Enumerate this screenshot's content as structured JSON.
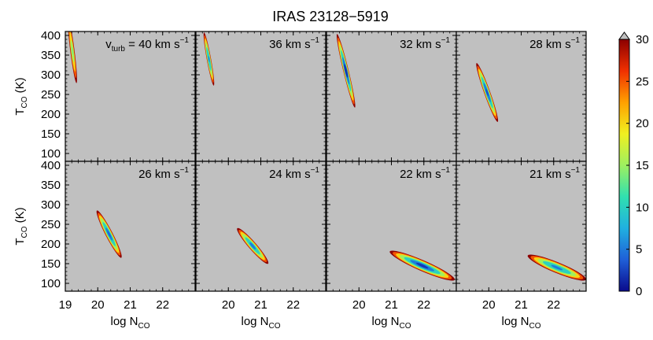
{
  "chart_data": {
    "type": "heatmap",
    "title": "IRAS 23128−5919",
    "ylabel_main": "T",
    "ylabel_sub": "CO",
    "ylabel_unit": " (K)",
    "xlabel_main": "log N",
    "xlabel_sub": "CO",
    "ylim": [
      80,
      410
    ],
    "xlim": [
      19,
      23
    ],
    "yticks": [
      "100",
      "150",
      "200",
      "250",
      "300",
      "350",
      "400"
    ],
    "xticks_first_panel": [
      "19",
      "20",
      "21",
      "22"
    ],
    "xticks_other_panels": [
      "",
      "20",
      "21",
      "22"
    ],
    "colorbar": {
      "ticks": [
        "0",
        "5",
        "10",
        "15",
        "20",
        "25",
        "30"
      ],
      "range": [
        0,
        30
      ],
      "extend": "max",
      "colors": [
        "#0a0a8c",
        "#1f5fd8",
        "#20b0e0",
        "#30e0b0",
        "#9ef060",
        "#f0f020",
        "#ffa000",
        "#f03000",
        "#8c0000"
      ]
    },
    "panel_background": "#c0c0c0",
    "panels": [
      {
        "label_prefix": "v",
        "label_sub": "turb",
        "label_value": " = 40 km s",
        "label_exp": "−1",
        "x_center": 19.22,
        "y_center": 360,
        "slope": -650,
        "length": 0.25,
        "width": 0.12,
        "min": 14
      },
      {
        "label_prefix": "",
        "label_sub": "",
        "label_value": "36 km s",
        "label_exp": "−1",
        "x_center": 19.4,
        "y_center": 340,
        "slope": -450,
        "length": 0.3,
        "width": 0.12,
        "min": 6
      },
      {
        "label_prefix": "",
        "label_sub": "",
        "label_value": "32 km s",
        "label_exp": "−1",
        "x_center": 19.6,
        "y_center": 310,
        "slope": -340,
        "length": 0.55,
        "width": 0.15,
        "min": 2
      },
      {
        "label_prefix": "",
        "label_sub": "",
        "label_value": "28 km s",
        "label_exp": "−1",
        "x_center": 19.95,
        "y_center": 255,
        "slope": -230,
        "length": 0.65,
        "width": 0.17,
        "min": 3
      },
      {
        "label_prefix": "",
        "label_sub": "",
        "label_value": "26 km s",
        "label_exp": "−1",
        "x_center": 20.35,
        "y_center": 225,
        "slope": -160,
        "length": 0.75,
        "width": 0.2,
        "min": 4
      },
      {
        "label_prefix": "",
        "label_sub": "",
        "label_value": "24 km s",
        "label_exp": "−1",
        "x_center": 20.75,
        "y_center": 195,
        "slope": -95,
        "length": 0.95,
        "width": 0.22,
        "min": 5
      },
      {
        "label_prefix": "",
        "label_sub": "",
        "label_value": "22 km s",
        "label_exp": "−1",
        "x_center": 21.95,
        "y_center": 145,
        "slope": -36,
        "length": 2.0,
        "width": 0.3,
        "min": 2
      },
      {
        "label_prefix": "",
        "label_sub": "",
        "label_value": "21 km s",
        "label_exp": "−1",
        "x_center": 22.1,
        "y_center": 140,
        "slope": -34,
        "length": 1.8,
        "width": 0.3,
        "min": 5
      }
    ]
  }
}
